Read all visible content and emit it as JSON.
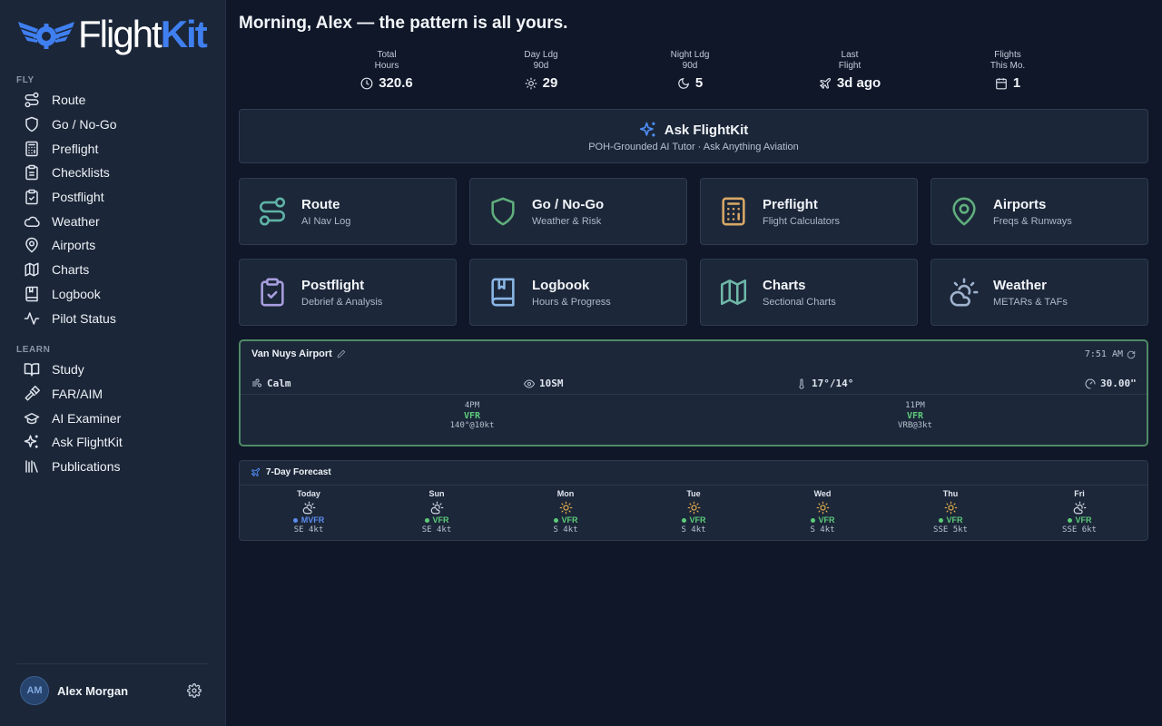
{
  "brand": {
    "part1": "Flight",
    "part2": "Kit",
    "accent": "#3f7ff0"
  },
  "sidebar": {
    "fly_label": "FLY",
    "fly_items": [
      {
        "label": "Route",
        "icon": "route-icon"
      },
      {
        "label": "Go / No-Go",
        "icon": "shield-icon"
      },
      {
        "label": "Preflight",
        "icon": "calculator-icon"
      },
      {
        "label": "Checklists",
        "icon": "clipboard-list-icon"
      },
      {
        "label": "Postflight",
        "icon": "clipboard-check-icon"
      },
      {
        "label": "Weather",
        "icon": "cloud-icon"
      },
      {
        "label": "Airports",
        "icon": "map-pin-icon"
      },
      {
        "label": "Charts",
        "icon": "map-icon"
      },
      {
        "label": "Logbook",
        "icon": "book-icon"
      },
      {
        "label": "Pilot Status",
        "icon": "activity-icon"
      }
    ],
    "learn_label": "LEARN",
    "learn_items": [
      {
        "label": "Study",
        "icon": "open-book-icon"
      },
      {
        "label": "FAR/AIM",
        "icon": "gavel-icon"
      },
      {
        "label": "AI Examiner",
        "icon": "graduation-cap-icon"
      },
      {
        "label": "Ask FlightKit",
        "icon": "sparkles-icon"
      },
      {
        "label": "Publications",
        "icon": "library-icon"
      }
    ],
    "user": {
      "initials": "AM",
      "name": "Alex Morgan"
    }
  },
  "greeting": "Morning, Alex — the pattern is all yours.",
  "stats": [
    {
      "label": "Total\nHours",
      "value": "320.6",
      "icon": "clock-icon"
    },
    {
      "label": "Day Ldg\n90d",
      "value": "29",
      "icon": "sun-icon"
    },
    {
      "label": "Night Ldg\n90d",
      "value": "5",
      "icon": "moon-icon"
    },
    {
      "label": "Last\nFlight",
      "value": "3d ago",
      "icon": "plane-icon"
    },
    {
      "label": "Flights\nThis Mo.",
      "value": "1",
      "icon": "calendar-icon"
    }
  ],
  "ask": {
    "title": "Ask FlightKit",
    "subtitle": "POH-Grounded AI Tutor · Ask Anything Aviation"
  },
  "tiles": [
    {
      "title": "Route",
      "subtitle": "AI Nav Log",
      "icon": "route-icon",
      "color": "#5fb3a6"
    },
    {
      "title": "Go / No-Go",
      "subtitle": "Weather & Risk",
      "icon": "shield-icon",
      "color": "#5fae7c"
    },
    {
      "title": "Preflight",
      "subtitle": "Flight Calculators",
      "icon": "calculator-icon",
      "color": "#d9a866"
    },
    {
      "title": "Airports",
      "subtitle": "Freqs & Runways",
      "icon": "map-pin-icon",
      "color": "#5fae7c"
    },
    {
      "title": "Postflight",
      "subtitle": "Debrief & Analysis",
      "icon": "clipboard-check-icon",
      "color": "#a99ee0"
    },
    {
      "title": "Logbook",
      "subtitle": "Hours & Progress",
      "icon": "book-icon",
      "color": "#8ab6e6"
    },
    {
      "title": "Charts",
      "subtitle": "Sectional Charts",
      "icon": "map-icon",
      "color": "#6fb8a8"
    },
    {
      "title": "Weather",
      "subtitle": "METARs & TAFs",
      "icon": "cloud-sun-icon",
      "color": "#9fb3cf"
    }
  ],
  "weather": {
    "airport": "Van Nuys Airport",
    "time": "7:51 AM",
    "wind": "Calm",
    "visibility": "10SM",
    "temp": "17°/14°",
    "altimeter": "30.00\"",
    "forecast": [
      {
        "time": "4PM",
        "category": "VFR",
        "wind": "140°@10kt"
      },
      {
        "time": "11PM",
        "category": "VFR",
        "wind": "VRB@3kt"
      }
    ]
  },
  "forecast": {
    "title": "7-Day Forecast",
    "days": [
      {
        "day": "Today",
        "category": "MVFR",
        "wind": "SE 4kt",
        "icon": "cloud-sun-icon",
        "color": "#5b8def"
      },
      {
        "day": "Sun",
        "category": "VFR",
        "wind": "SE 4kt",
        "icon": "cloud-sun-icon",
        "color": "#5ccb7a"
      },
      {
        "day": "Mon",
        "category": "VFR",
        "wind": "S 4kt",
        "icon": "sun-icon",
        "color": "#5ccb7a"
      },
      {
        "day": "Tue",
        "category": "VFR",
        "wind": "S 4kt",
        "icon": "sun-icon",
        "color": "#5ccb7a"
      },
      {
        "day": "Wed",
        "category": "VFR",
        "wind": "S 4kt",
        "icon": "sun-icon",
        "color": "#5ccb7a"
      },
      {
        "day": "Thu",
        "category": "VFR",
        "wind": "SSE 5kt",
        "icon": "sun-icon",
        "color": "#5ccb7a"
      },
      {
        "day": "Fri",
        "category": "VFR",
        "wind": "SSE 6kt",
        "icon": "cloud-sun-icon",
        "color": "#5ccb7a"
      }
    ]
  }
}
